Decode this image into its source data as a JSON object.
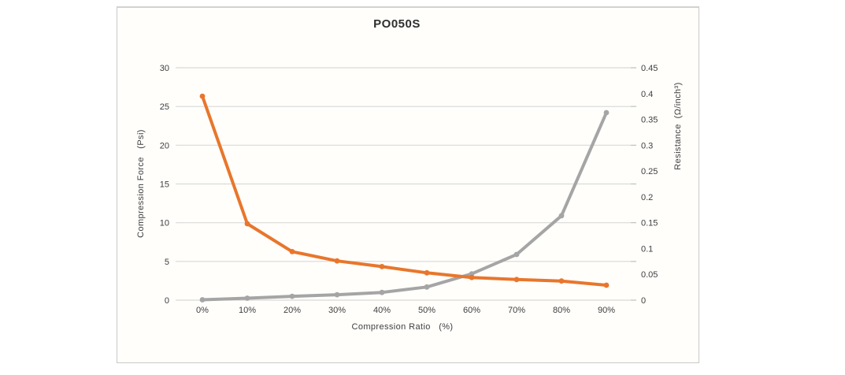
{
  "colors": {
    "grid": "#d9d9d9",
    "tick_mark": "#bfbfbf",
    "border": "#c9c9c9",
    "text": "#3e3e3e",
    "title_text": "#2f2f2f",
    "series_compression_force": "#a5a5a5",
    "series_resistance": "#e8762c"
  },
  "chart_data": {
    "type": "line",
    "title": "PO050S",
    "xlabel": "Compression Ratio   (%)",
    "x_categories": [
      "0%",
      "10%",
      "20%",
      "30%",
      "40%",
      "50%",
      "60%",
      "70%",
      "80%",
      "90%"
    ],
    "left_axis": {
      "label": "Compression Force   (Psi)",
      "min": 0,
      "max": 30,
      "ticks": [
        "0",
        "5",
        "10",
        "15",
        "20",
        "25",
        "30"
      ]
    },
    "right_axis": {
      "label": "Resistance  (Ω/inch³)",
      "min": 0,
      "max": 0.45,
      "ticks": [
        "0",
        "0.05",
        "0.1",
        "0.15",
        "0.2",
        "0.25",
        "0.3",
        "0.35",
        "0.4",
        "0.45"
      ]
    },
    "grid": "horizontal",
    "legend": "none",
    "series": [
      {
        "id": "compression-force",
        "name": "Compression Force (Psi)",
        "axis": "left",
        "color": "#a5a5a5",
        "values": [
          0.05,
          0.25,
          0.5,
          0.7,
          1.0,
          1.7,
          3.4,
          5.9,
          10.9,
          24.2
        ]
      },
      {
        "id": "resistance",
        "name": "Resistance (Ω/inch³)",
        "axis": "right",
        "color": "#e8762c",
        "values": [
          0.395,
          0.148,
          0.094,
          0.076,
          0.065,
          0.053,
          0.044,
          0.04,
          0.037,
          0.029
        ]
      }
    ]
  }
}
